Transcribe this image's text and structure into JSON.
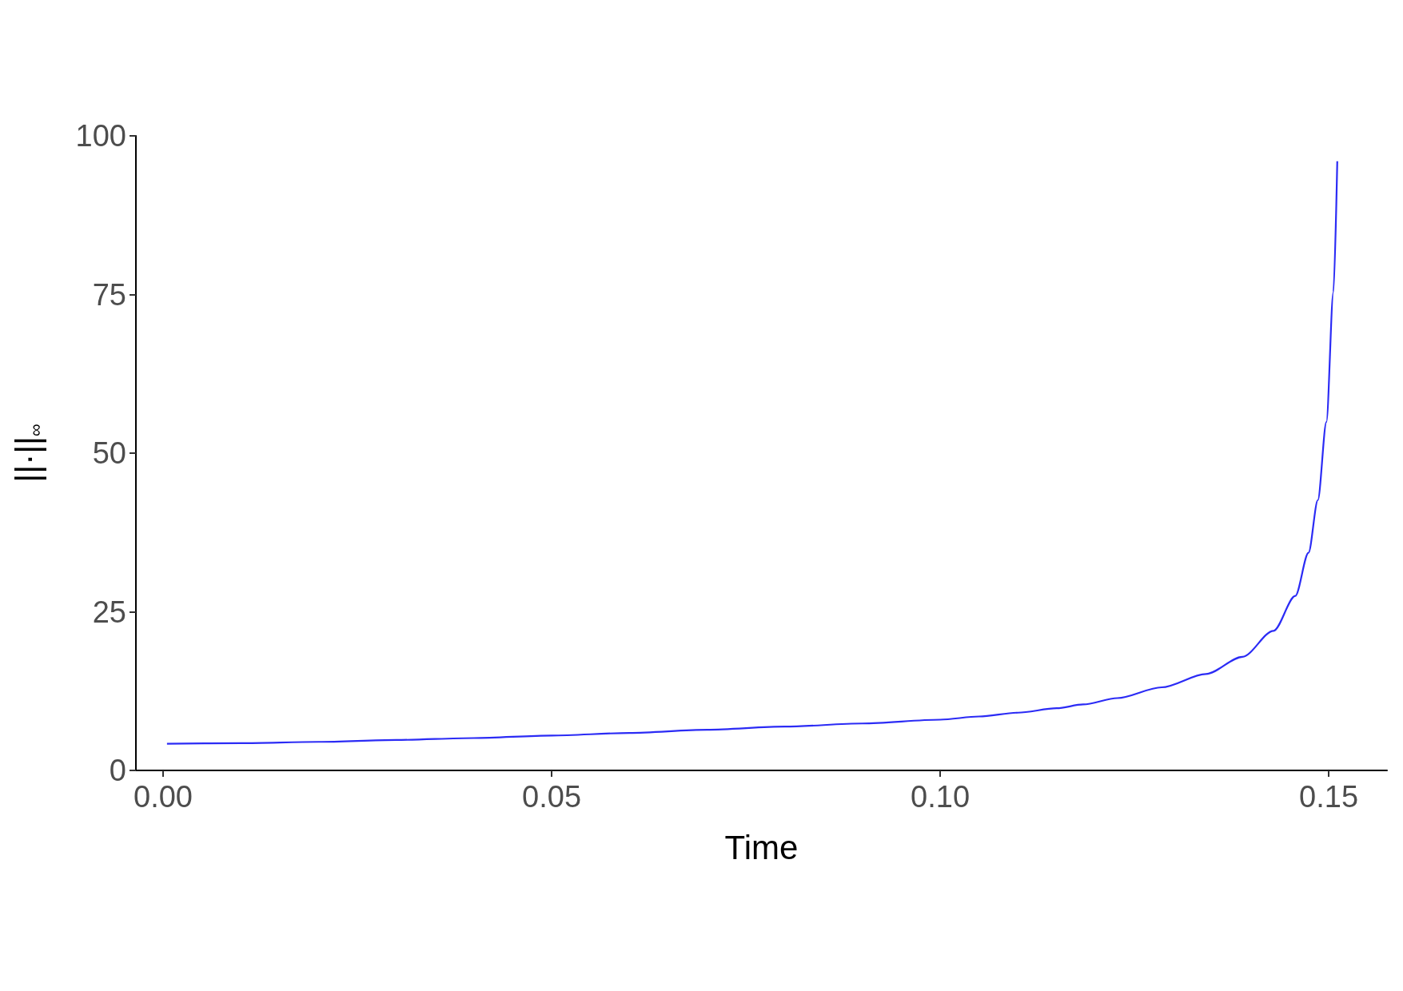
{
  "chart_data": {
    "type": "line",
    "xlabel": "Time",
    "ylabel": "||·||$_{∞}$",
    "x": [
      0.0005,
      0.01,
      0.02,
      0.03,
      0.04,
      0.05,
      0.06,
      0.07,
      0.08,
      0.09,
      0.1,
      0.105,
      0.11,
      0.115,
      0.1184,
      0.1228,
      0.1285,
      0.1342,
      0.1389,
      0.1429,
      0.1457,
      0.1474,
      0.1486,
      0.1497,
      0.1506,
      0.1511
    ],
    "series": [
      {
        "color": "#2b2bf5",
        "values": [
          4.2,
          4.3,
          4.5,
          4.8,
          5.1,
          5.5,
          5.9,
          6.4,
          6.9,
          7.4,
          8.0,
          8.5,
          9.1,
          9.8,
          10.4,
          11.4,
          13.1,
          15.2,
          17.9,
          22,
          27.5,
          34.3,
          42.6,
          54.9,
          75.4,
          96
        ]
      }
    ],
    "xlim": [
      -0.0035,
      0.1575
    ],
    "xticks": [
      {
        "value": 0,
        "label": "0.00"
      },
      0.05,
      {
        "value": 0.1,
        "label": "0.10"
      },
      0.15
    ],
    "ylim": [
      0,
      100
    ],
    "yticks": [
      0,
      25,
      50,
      75,
      100
    ],
    "marker": "none",
    "line_style": "solid"
  }
}
